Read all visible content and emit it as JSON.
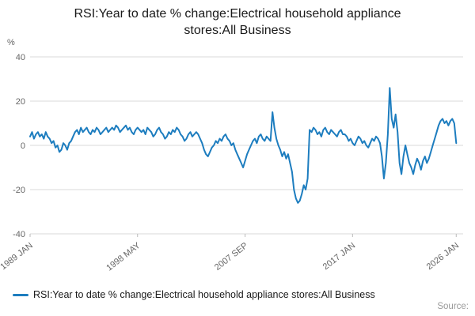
{
  "labels": {
    "source": "Source:"
  },
  "chart_data": {
    "type": "line",
    "title": "RSI:Year to date % change:Electrical household appliance stores:All Business",
    "ylabel": "%",
    "xlabel": "",
    "grid": true,
    "legend_position": "bottom-left",
    "line_color": "#1d7dbf",
    "grid_color": "#d9d9d9",
    "ylim": [
      -40,
      40
    ],
    "y_ticks": [
      40,
      20,
      0,
      -20,
      -40
    ],
    "x_axis_min": 1989.0,
    "x_axis_max": 2026.6,
    "x_start": 1989.0,
    "x_end": 2026.0,
    "x_ticks": [
      {
        "label": "1989 JAN",
        "year": 1989.0
      },
      {
        "label": "1998 MAY",
        "year": 1998.33
      },
      {
        "label": "2007 SEP",
        "year": 2007.67
      },
      {
        "label": "2017 JAN",
        "year": 2017.0
      },
      {
        "label": "2026 JAN",
        "year": 2026.0
      }
    ],
    "series": [
      {
        "name": "RSI:Year to date % change:Electrical household appliance stores:All Business",
        "color": "#1d7dbf",
        "values": [
          4,
          6,
          3,
          5,
          6,
          4,
          5,
          3,
          6,
          4,
          3,
          1,
          2,
          -1,
          0,
          -3,
          -2,
          1,
          0,
          -2,
          1,
          2,
          4,
          6,
          7,
          5,
          8,
          6,
          7,
          8,
          6,
          5,
          7,
          6,
          8,
          7,
          5,
          6,
          7,
          8,
          6,
          7,
          8,
          7,
          9,
          8,
          6,
          7,
          8,
          9,
          7,
          8,
          6,
          5,
          7,
          8,
          7,
          6,
          7,
          5,
          8,
          7,
          6,
          4,
          5,
          7,
          8,
          6,
          5,
          3,
          4,
          6,
          5,
          7,
          6,
          8,
          7,
          5,
          4,
          2,
          3,
          5,
          6,
          4,
          5,
          6,
          5,
          3,
          1,
          -2,
          -4,
          -5,
          -3,
          -1,
          0,
          2,
          1,
          3,
          2,
          4,
          5,
          3,
          2,
          0,
          1,
          -2,
          -4,
          -6,
          -8,
          -10,
          -7,
          -4,
          -2,
          0,
          2,
          3,
          1,
          4,
          5,
          3,
          2,
          4,
          3,
          2,
          15,
          8,
          3,
          0,
          -2,
          -5,
          -3,
          -6,
          -4,
          -8,
          -12,
          -20,
          -24,
          -26,
          -25,
          -22,
          -18,
          -20,
          -15,
          7,
          6,
          8,
          7,
          5,
          6,
          4,
          7,
          8,
          6,
          5,
          7,
          6,
          5,
          4,
          6,
          7,
          5,
          5,
          4,
          2,
          3,
          1,
          0,
          2,
          4,
          3,
          1,
          2,
          0,
          -1,
          1,
          3,
          2,
          4,
          3,
          1,
          -5,
          -15,
          -8,
          5,
          26,
          12,
          8,
          14,
          6,
          -8,
          -13,
          -5,
          0,
          -4,
          -8,
          -10,
          -13,
          -9,
          -6,
          -8,
          -11,
          -7,
          -5,
          -8,
          -6,
          -3,
          0,
          3,
          6,
          9,
          11,
          12,
          10,
          11,
          9,
          11,
          12,
          10,
          1
        ]
      }
    ]
  }
}
